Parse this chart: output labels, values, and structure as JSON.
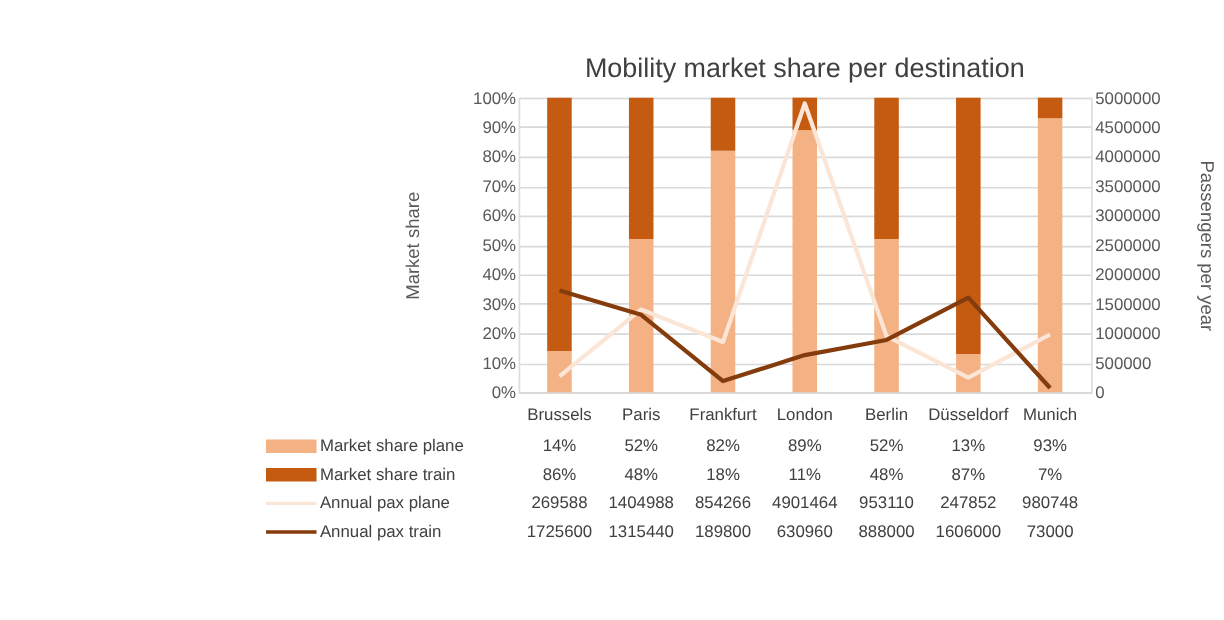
{
  "chart_data": {
    "type": "bar",
    "title": "Mobility market share per destination",
    "categories": [
      "Brussels",
      "Paris",
      "Frankfurt",
      "London",
      "Berlin",
      "Düsseldorf",
      "Munich"
    ],
    "stacked": true,
    "ylabel": "Market share",
    "y2label": "Passengers per year",
    "ylim": [
      0,
      100
    ],
    "yticks": [
      {
        "value": 0,
        "label": "0%"
      },
      {
        "value": 10,
        "label": "10%"
      },
      {
        "value": 20,
        "label": "20%"
      },
      {
        "value": 30,
        "label": "30%"
      },
      {
        "value": 40,
        "label": "40%"
      },
      {
        "value": 50,
        "label": "50%"
      },
      {
        "value": 60,
        "label": "60%"
      },
      {
        "value": 70,
        "label": "70%"
      },
      {
        "value": 80,
        "label": "80%"
      },
      {
        "value": 90,
        "label": "90%"
      },
      {
        "value": 100,
        "label": "100%"
      }
    ],
    "y2lim": [
      0,
      5000000
    ],
    "y2ticks": [
      0,
      500000,
      1000000,
      1500000,
      2000000,
      2500000,
      3000000,
      3500000,
      4000000,
      4500000,
      5000000
    ],
    "grid": "y",
    "legend": "bottom",
    "series": [
      {
        "name": "Market share plane",
        "color": "#f4b183",
        "values": [
          14,
          52,
          82,
          89,
          52,
          13,
          93
        ],
        "value_labels": [
          "14%",
          "52%",
          "82%",
          "89%",
          "52%",
          "13%",
          "93%"
        ]
      },
      {
        "name": "Market share train",
        "color": "#c55a11",
        "values": [
          86,
          48,
          18,
          11,
          48,
          87,
          7
        ],
        "value_labels": [
          "86%",
          "48%",
          "18%",
          "11%",
          "48%",
          "87%",
          "7%"
        ]
      },
      {
        "name": "Annual pax plane",
        "type": "line",
        "axis": "y2",
        "color": "#fbe5d6",
        "values": [
          269588,
          1404988,
          854266,
          4901464,
          953110,
          247852,
          980748
        ],
        "value_labels": [
          "269588",
          "1404988",
          "854266",
          "4901464",
          "953110",
          "247852",
          "980748"
        ]
      },
      {
        "name": "Annual pax train",
        "type": "line",
        "axis": "y2",
        "color": "#843c0c",
        "values": [
          1725600,
          1315440,
          189800,
          630960,
          888000,
          1606000,
          73000
        ],
        "value_labels": [
          "1725600",
          "1315440",
          "189800",
          "630960",
          "888000",
          "1606000",
          "73000"
        ]
      }
    ]
  }
}
